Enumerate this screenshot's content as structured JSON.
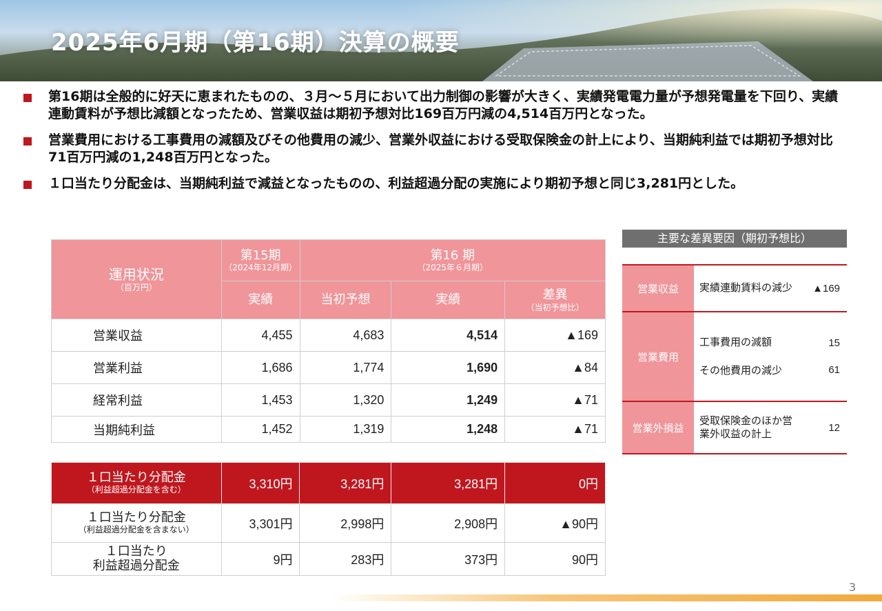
{
  "title": "2025年6月期（第16期）決算の概要",
  "bullets": [
    "第16期は全般的に好天に恵まれたものの、３月～５月において出力制御の影響が大きく、実績発電電力量が予想発電量を下回り、実績連動賃料が予想比減額となったため、営業収益は期初予想対比169百万円減の4,514百万円となった。",
    "営業費用における工事費用の減額及びその他費用の減少、営業外収益における受取保険金の計上により、当期純利益では期初予想対比71百万円減の1,248百万円となった。",
    "１口当たり分配金は、当期純利益で減益となったものの、利益超過分配の実施により期初予想と同じ3,281円とした。"
  ],
  "table": {
    "header": {
      "label": "運用状況",
      "label_sub": "（百万円）",
      "p15": "第15期",
      "p15_sub": "（2024年12月期）",
      "p16": "第16 期",
      "p16_sub": "（2025年６月期）",
      "actual15": "実績",
      "forecast": "当初予想",
      "actual16": "実績",
      "diff": "差異",
      "diff_sub": "（当初予想比）"
    },
    "rows": [
      {
        "label": "営業収益",
        "p15": "4,455",
        "forecast": "4,683",
        "actual": "4,514",
        "diff": "▲169"
      },
      {
        "label": "営業利益",
        "p15": "1,686",
        "forecast": "1,774",
        "actual": "1,690",
        "diff": "▲84"
      },
      {
        "label": "経常利益",
        "p15": "1,453",
        "forecast": "1,320",
        "actual": "1,249",
        "diff": "▲71"
      },
      {
        "label": "当期純利益",
        "p15": "1,452",
        "forecast": "1,319",
        "actual": "1,248",
        "diff": "▲71"
      }
    ]
  },
  "distribution": [
    {
      "label": "１口当たり分配金",
      "sub": "（利益超過分配金を含む）",
      "p15": "3,310円",
      "forecast": "3,281円",
      "actual": "3,281円",
      "diff": "0円"
    },
    {
      "label": "１口当たり分配金",
      "sub": "（利益超過分配金を含まない）",
      "p15": "3,301円",
      "forecast": "2,998円",
      "actual": "2,908円",
      "diff": "▲90円"
    },
    {
      "label": "１口当たり",
      "sub": "利益超過分配金",
      "p15": "9円",
      "forecast": "283円",
      "actual": "373円",
      "diff": "90円"
    }
  ],
  "side": {
    "header": "主要な差異要因（期初予想比）",
    "revenue_label": "営業収益",
    "revenue_item": "実績連動賃料の減少",
    "revenue_value": "▲169",
    "expense_label": "営業費用",
    "expense_item1": "工事費用の減額",
    "expense_value1": "15",
    "expense_item2": "その他費用の減少",
    "expense_value2": "61",
    "nonop_label": "営業外損益",
    "nonop_item": "受取保険金のほか営業外収益の計上",
    "nonop_value": "12"
  },
  "page_number": "3",
  "colors": {
    "accent_red": "#c0171f",
    "header_pink": "#f0959a",
    "side_header": "#6f6f6f"
  }
}
